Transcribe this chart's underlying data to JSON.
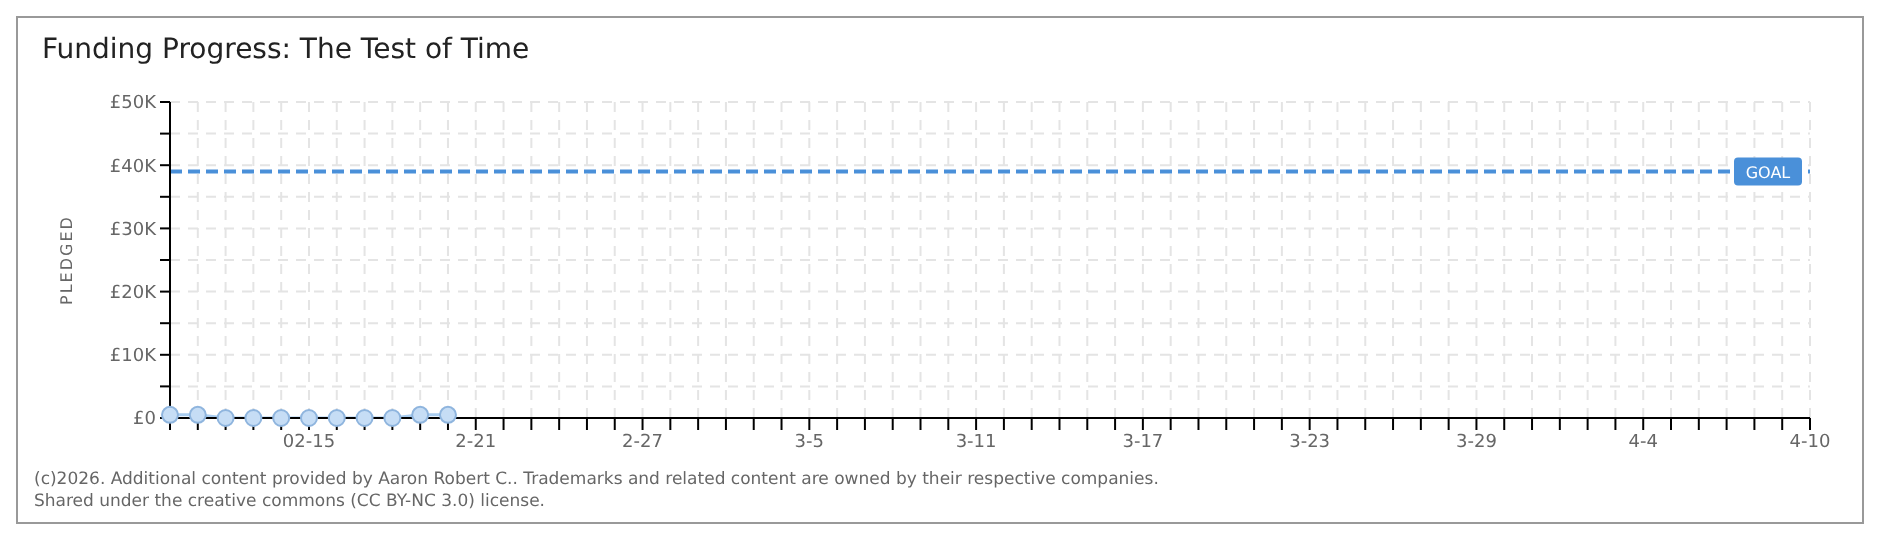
{
  "chart_data": {
    "type": "line",
    "title": "Funding Progress: The Test of Time",
    "ylabel": "PLEDGED",
    "x": [
      "2026-02-10",
      "2026-02-11",
      "2026-02-12",
      "2026-02-13",
      "2026-02-14",
      "2026-02-15",
      "2026-02-16",
      "2026-02-17",
      "2026-02-18",
      "2026-02-19",
      "2026-02-20"
    ],
    "series": [
      {
        "color": "#a9cdf0",
        "values": [
          500,
          500,
          0,
          0,
          0,
          0,
          0,
          0,
          0,
          500,
          500
        ]
      }
    ],
    "xlim": [
      "2026-02-10",
      "2026-04-10"
    ],
    "xticks": [
      {
        "value": "2026-02-10",
        "label": null
      },
      {
        "value": "2026-02-11",
        "label": null
      },
      {
        "value": "2026-02-12",
        "label": null
      },
      {
        "value": "2026-02-13",
        "label": null
      },
      {
        "value": "2026-02-14",
        "label": null
      },
      {
        "value": "2026-02-15",
        "label": "02-15"
      },
      {
        "value": "2026-02-16",
        "label": null
      },
      {
        "value": "2026-02-17",
        "label": null
      },
      {
        "value": "2026-02-18",
        "label": null
      },
      {
        "value": "2026-02-19",
        "label": null
      },
      {
        "value": "2026-02-20",
        "label": null
      },
      {
        "value": "2026-02-21",
        "label": "2-21"
      },
      {
        "value": "2026-02-22",
        "label": null
      },
      {
        "value": "2026-02-23",
        "label": null
      },
      {
        "value": "2026-02-24",
        "label": null
      },
      {
        "value": "2026-02-25",
        "label": null
      },
      {
        "value": "2026-02-26",
        "label": null
      },
      {
        "value": "2026-02-27",
        "label": "2-27"
      },
      {
        "value": "2026-02-28",
        "label": null
      },
      {
        "value": "2026-03-01",
        "label": null
      },
      {
        "value": "2026-03-02",
        "label": null
      },
      {
        "value": "2026-03-03",
        "label": null
      },
      {
        "value": "2026-03-04",
        "label": null
      },
      {
        "value": "2026-03-05",
        "label": "3-5"
      },
      {
        "value": "2026-03-06",
        "label": null
      },
      {
        "value": "2026-03-07",
        "label": null
      },
      {
        "value": "2026-03-08",
        "label": null
      },
      {
        "value": "2026-03-09",
        "label": null
      },
      {
        "value": "2026-03-10",
        "label": null
      },
      {
        "value": "2026-03-11",
        "label": "3-11"
      },
      {
        "value": "2026-03-12",
        "label": null
      },
      {
        "value": "2026-03-13",
        "label": null
      },
      {
        "value": "2026-03-14",
        "label": null
      },
      {
        "value": "2026-03-15",
        "label": null
      },
      {
        "value": "2026-03-16",
        "label": null
      },
      {
        "value": "2026-03-17",
        "label": "3-17"
      },
      {
        "value": "2026-03-18",
        "label": null
      },
      {
        "value": "2026-03-19",
        "label": null
      },
      {
        "value": "2026-03-20",
        "label": null
      },
      {
        "value": "2026-03-21",
        "label": null
      },
      {
        "value": "2026-03-22",
        "label": null
      },
      {
        "value": "2026-03-23",
        "label": "3-23"
      },
      {
        "value": "2026-03-24",
        "label": null
      },
      {
        "value": "2026-03-25",
        "label": null
      },
      {
        "value": "2026-03-26",
        "label": null
      },
      {
        "value": "2026-03-27",
        "label": null
      },
      {
        "value": "2026-03-28",
        "label": null
      },
      {
        "value": "2026-03-29",
        "label": "3-29"
      },
      {
        "value": "2026-03-30",
        "label": null
      },
      {
        "value": "2026-03-31",
        "label": null
      },
      {
        "value": "2026-04-01",
        "label": null
      },
      {
        "value": "2026-04-02",
        "label": null
      },
      {
        "value": "2026-04-03",
        "label": null
      },
      {
        "value": "2026-04-04",
        "label": "4-4"
      },
      {
        "value": "2026-04-05",
        "label": null
      },
      {
        "value": "2026-04-06",
        "label": null
      },
      {
        "value": "2026-04-07",
        "label": null
      },
      {
        "value": "2026-04-08",
        "label": null
      },
      {
        "value": "2026-04-09",
        "label": null
      },
      {
        "value": "2026-04-10",
        "label": "4-10"
      }
    ],
    "ylim": [
      0,
      50000
    ],
    "yticks": [
      {
        "value": 0,
        "label": "£0"
      },
      {
        "value": 5000,
        "label": null
      },
      {
        "value": 10000,
        "label": "£10K"
      },
      {
        "value": 15000,
        "label": null
      },
      {
        "value": 20000,
        "label": "£20K"
      },
      {
        "value": 25000,
        "label": null
      },
      {
        "value": 30000,
        "label": "£30K"
      },
      {
        "value": 35000,
        "label": null
      },
      {
        "value": 40000,
        "label": "£40K"
      },
      {
        "value": 45000,
        "label": null
      },
      {
        "value": 50000,
        "label": "£50K"
      }
    ],
    "ref_lines": [
      {
        "axis": "y",
        "value": 39000,
        "label": "GOAL",
        "color": "#4a90d9",
        "line_style": "dashed"
      }
    ],
    "grid": true,
    "marker": "circle",
    "line_style": "solid",
    "legend": false,
    "annotations": [
      "(c)2026. Additional content provided by Aaron Robert C.. Trademarks and related content are owned by their respective companies.",
      "Shared under the creative commons (CC BY-NC 3.0) license."
    ]
  }
}
